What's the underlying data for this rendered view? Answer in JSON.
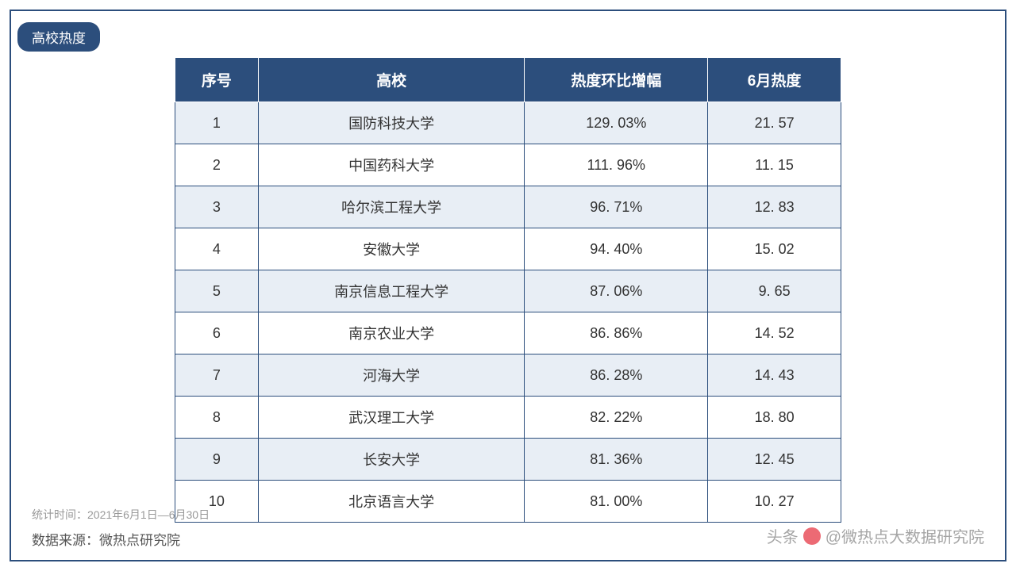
{
  "title": "高校热度",
  "table": {
    "columns": [
      "序号",
      "高校",
      "热度环比增幅",
      "6月热度"
    ],
    "column_widths": [
      "100px",
      "320px",
      "220px",
      "160px"
    ],
    "header_bg": "#2c4e7c",
    "header_color": "#ffffff",
    "header_fontsize": 19,
    "cell_fontsize": 18,
    "border_color": "#2c4e7c",
    "odd_row_bg": "#e8eef5",
    "even_row_bg": "#ffffff",
    "rows": [
      {
        "seq": "1",
        "name": "国防科技大学",
        "growth": "129. 03%",
        "heat": "21. 57"
      },
      {
        "seq": "2",
        "name": "中国药科大学",
        "growth": "111. 96%",
        "heat": "11. 15"
      },
      {
        "seq": "3",
        "name": "哈尔滨工程大学",
        "growth": "96. 71%",
        "heat": "12. 83"
      },
      {
        "seq": "4",
        "name": "安徽大学",
        "growth": "94. 40%",
        "heat": "15. 02"
      },
      {
        "seq": "5",
        "name": "南京信息工程大学",
        "growth": "87. 06%",
        "heat": "9. 65"
      },
      {
        "seq": "6",
        "name": "南京农业大学",
        "growth": "86. 86%",
        "heat": "14. 52"
      },
      {
        "seq": "7",
        "name": "河海大学",
        "growth": "86. 28%",
        "heat": "14. 43"
      },
      {
        "seq": "8",
        "name": "武汉理工大学",
        "growth": "82. 22%",
        "heat": "18. 80"
      },
      {
        "seq": "9",
        "name": "长安大学",
        "growth": "81. 36%",
        "heat": "12. 45"
      },
      {
        "seq": "10",
        "name": "北京语言大学",
        "growth": "81. 00%",
        "heat": "10. 27"
      }
    ]
  },
  "footer": {
    "time_label": "统计时间：2021年6月1日—6月30日",
    "source_label": "数据来源：微热点研究院"
  },
  "watermark": {
    "prefix": "头条",
    "text": "@微热点大数据研究院"
  },
  "colors": {
    "primary": "#2c4e7c",
    "background": "#ffffff",
    "text": "#333333",
    "footer_time": "#999999",
    "footer_source": "#555555"
  }
}
